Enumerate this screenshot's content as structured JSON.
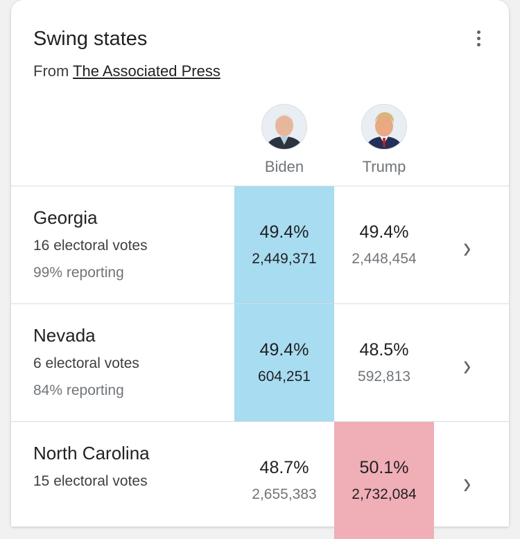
{
  "title": "Swing states",
  "source_prefix": "From",
  "source_link": "The Associated Press",
  "colors": {
    "biden_win": "#a8dcf0",
    "trump_win": "#f0aeb6"
  },
  "candidates": [
    {
      "name": "Biden",
      "icon": "biden-photo"
    },
    {
      "name": "Trump",
      "icon": "trump-photo"
    }
  ],
  "states": [
    {
      "name": "Georgia",
      "electoral_votes": "16 electoral votes",
      "reporting": "99% reporting",
      "biden_pct": "49.4%",
      "biden_votes": "2,449,371",
      "trump_pct": "49.4%",
      "trump_votes": "2,448,454",
      "leader": "biden"
    },
    {
      "name": "Nevada",
      "electoral_votes": "6 electoral votes",
      "reporting": "84% reporting",
      "biden_pct": "49.4%",
      "biden_votes": "604,251",
      "trump_pct": "48.5%",
      "trump_votes": "592,813",
      "leader": "biden"
    },
    {
      "name": "North Carolina",
      "electoral_votes": "15 electoral votes",
      "reporting": "",
      "biden_pct": "48.7%",
      "biden_votes": "2,655,383",
      "trump_pct": "50.1%",
      "trump_votes": "2,732,084",
      "leader": "trump"
    }
  ]
}
